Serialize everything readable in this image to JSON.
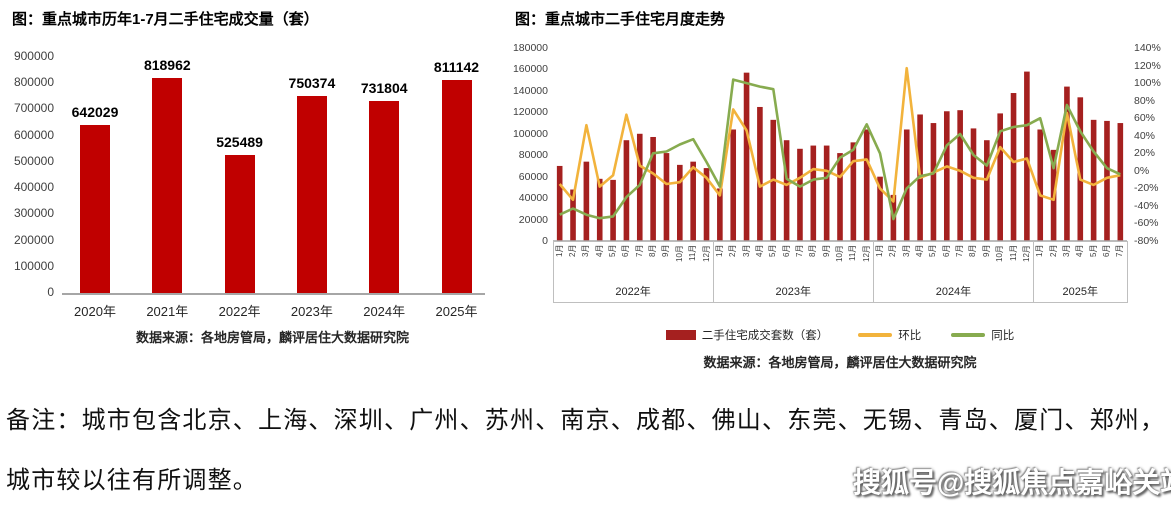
{
  "note": {
    "line1": "备注：城市包含北京、上海、深圳、广州、苏州、南京、成都、佛山、东莞、无锡、青岛、厦门、郑州，",
    "line2": "城市较以往有所调整。"
  },
  "watermark": "搜狐号@搜狐焦点嘉峪关站",
  "colors": {
    "annual_bar": "#c00000",
    "monthly_bar": "#a5201f",
    "mom_line": "#f2b33c",
    "yoy_line": "#87ab4f",
    "axis": "#a6a6a6",
    "divider": "#bfbfbf"
  },
  "chart_data": [
    {
      "id": "annual",
      "type": "bar",
      "title": "图：重点城市历年1-7月二手住宅成交量（套）",
      "categories": [
        "2020年",
        "2021年",
        "2022年",
        "2023年",
        "2024年",
        "2025年"
      ],
      "values": [
        642029,
        818962,
        525489,
        750374,
        731804,
        811142
      ],
      "ylim": [
        0,
        900000
      ],
      "y_ticks": [
        "0",
        "100000",
        "200000",
        "300000",
        "400000",
        "500000",
        "600000",
        "700000",
        "800000",
        "900000"
      ],
      "grid": false,
      "legend_position": "none",
      "source": "数据来源：各地房管局，麟评居住大数据研究院"
    },
    {
      "id": "monthly",
      "type": "bar+line",
      "title": "图：重点城市二手住宅月度走势",
      "year_groups": [
        {
          "label": "2022年",
          "months": 12
        },
        {
          "label": "2023年",
          "months": 12
        },
        {
          "label": "2024年",
          "months": 12
        },
        {
          "label": "2025年",
          "months": 7
        }
      ],
      "month_labels": [
        "1月",
        "2月",
        "3月",
        "4月",
        "5月",
        "6月",
        "7月",
        "8月",
        "9月",
        "10月",
        "11月",
        "12月",
        "1月",
        "2月",
        "3月",
        "4月",
        "5月",
        "6月",
        "7月",
        "8月",
        "9月",
        "10月",
        "11月",
        "12月",
        "1月",
        "2月",
        "3月",
        "4月",
        "5月",
        "6月",
        "7月",
        "8月",
        "9月",
        "10月",
        "11月",
        "12月",
        "1月",
        "2月",
        "3月",
        "4月",
        "5月",
        "6月",
        "7月"
      ],
      "series": [
        {
          "name": "二手住宅成交套数（套）",
          "type": "bar",
          "axis": "left",
          "values": [
            70000,
            48000,
            74000,
            58000,
            57000,
            94000,
            100000,
            97000,
            82000,
            71000,
            74000,
            68000,
            49000,
            104000,
            157000,
            125000,
            113000,
            94000,
            86000,
            89000,
            89000,
            82000,
            92000,
            104000,
            60000,
            43000,
            104000,
            118000,
            110000,
            121000,
            122000,
            105000,
            94000,
            119000,
            138000,
            158000,
            104000,
            85000,
            144000,
            134000,
            113000,
            112000,
            110000
          ]
        },
        {
          "name": "环比",
          "type": "line",
          "axis": "right",
          "values": [
            -15,
            -33,
            52,
            -18,
            -5,
            64,
            6,
            -3,
            -15,
            -13,
            4,
            -8,
            -28,
            70,
            46,
            -18,
            -10,
            -16,
            -8,
            2,
            0,
            -7,
            11,
            13,
            -20,
            -35,
            117,
            -8,
            -2,
            5,
            0,
            -8,
            -10,
            27,
            10,
            14,
            -28,
            -33,
            66,
            -10,
            -16,
            -8,
            -5
          ]
        },
        {
          "name": "同比",
          "type": "line",
          "axis": "right",
          "values": [
            -50,
            -43,
            -50,
            -54,
            -52,
            -30,
            -16,
            20,
            22,
            30,
            36,
            10,
            -18,
            104,
            100,
            96,
            93,
            -9,
            -18,
            -10,
            -8,
            15,
            24,
            53,
            20,
            -55,
            -20,
            -6,
            -3,
            29,
            42,
            18,
            6,
            45,
            50,
            52,
            60,
            3,
            75,
            45,
            22,
            3,
            -4
          ]
        }
      ],
      "left_axis": {
        "range": [
          0,
          180000
        ],
        "ticks": [
          "0",
          "20000",
          "40000",
          "60000",
          "80000",
          "100000",
          "120000",
          "140000",
          "160000",
          "180000"
        ]
      },
      "right_axis": {
        "range": [
          -80,
          140
        ],
        "ticks": [
          "-80%",
          "-60%",
          "-40%",
          "-20%",
          "0%",
          "20%",
          "40%",
          "60%",
          "80%",
          "100%",
          "120%",
          "140%"
        ]
      },
      "grid": false,
      "legend_position": "bottom",
      "source": "数据来源：各地房管局，麟评居住大数据研究院"
    }
  ]
}
